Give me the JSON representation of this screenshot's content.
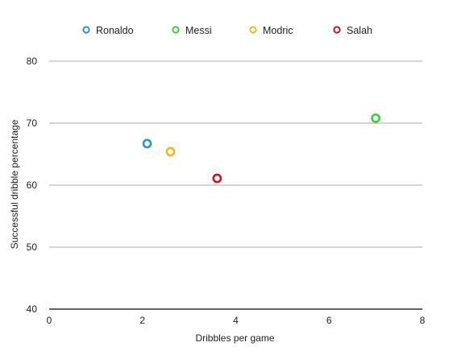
{
  "chart_data": {
    "type": "scatter",
    "title": "",
    "xlabel": "Dribbles per game",
    "ylabel": "Successful dribble percentage",
    "xlim": [
      0,
      8
    ],
    "ylim": [
      40,
      80
    ],
    "x_ticks": [
      0,
      2,
      4,
      6,
      8
    ],
    "y_ticks": [
      40,
      50,
      60,
      70,
      80
    ],
    "grid": "horizontal",
    "legend_position": "top",
    "series": [
      {
        "name": "Ronaldo",
        "color": "#2a93d5",
        "points": [
          {
            "x": 2.1,
            "y": 66.7
          }
        ]
      },
      {
        "name": "Messi",
        "color": "#3ccf3c",
        "points": [
          {
            "x": 7.0,
            "y": 70.8
          }
        ]
      },
      {
        "name": "Modric",
        "color": "#f2b51d",
        "points": [
          {
            "x": 2.6,
            "y": 65.4
          }
        ]
      },
      {
        "name": "Salah",
        "color": "#c4151c",
        "points": [
          {
            "x": 3.6,
            "y": 61.1
          }
        ]
      }
    ]
  }
}
